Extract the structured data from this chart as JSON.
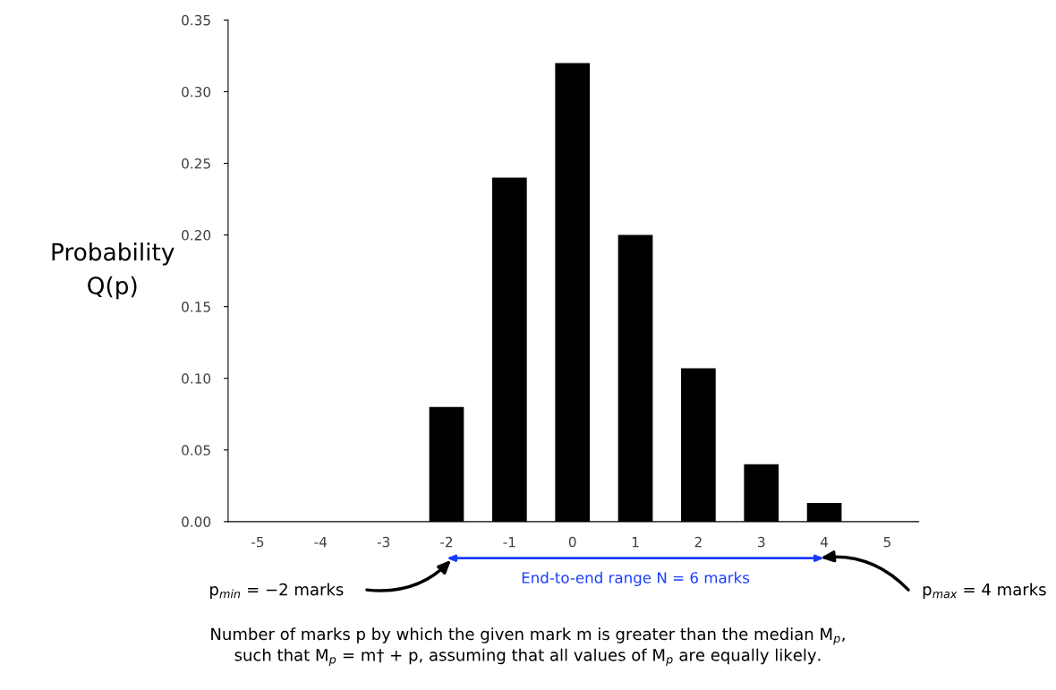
{
  "chart_data": {
    "type": "bar",
    "categories": [
      "-5",
      "-4",
      "-3",
      "-2",
      "-1",
      "0",
      "1",
      "2",
      "3",
      "4",
      "5"
    ],
    "values": [
      0,
      0,
      0,
      0.08,
      0.24,
      0.32,
      0.2,
      0.107,
      0.04,
      0.013,
      0
    ],
    "color": "#000000",
    "ylabel": "Probability\nQ(p)",
    "xlabel": "Number of marks p by which the given mark m is greater than the median M$_{p}$,\nsuch that M$_{p}$ = m† + p, assuming that all values of M$_{p}$ are equally likely.",
    "ylim": [
      0,
      0.35
    ],
    "yticks": [
      {
        "value": 0,
        "label": "0.00"
      },
      {
        "value": 0.05,
        "label": "0.05"
      },
      {
        "value": 0.1,
        "label": "0.10"
      },
      {
        "value": 0.15,
        "label": "0.15"
      },
      {
        "value": 0.2,
        "label": "0.20"
      },
      {
        "value": 0.25,
        "label": "0.25"
      },
      {
        "value": 0.3,
        "label": "0.30"
      },
      {
        "value": 0.35,
        "label": "0.35"
      }
    ],
    "grid": false,
    "annotations": [
      "p$_{min}$ = −2 marks",
      "End-to-end range N = 6 marks",
      "p$_{max}$ = 4 marks"
    ]
  }
}
